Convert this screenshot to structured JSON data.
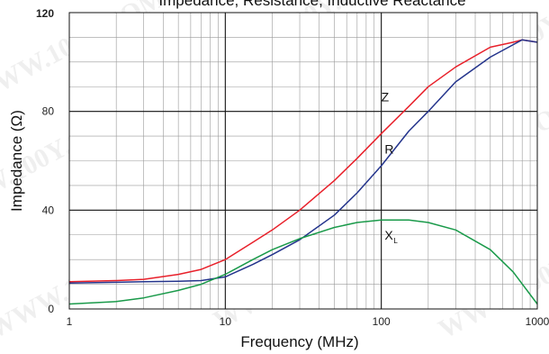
{
  "chart_data": {
    "type": "line",
    "title": "Impedance, Resistance, Inductive Reactance",
    "xlabel": "Frequency (MHz)",
    "ylabel": "Impedance (Ω)",
    "xscale": "log",
    "xlim": [
      1,
      1000
    ],
    "ylim": [
      0,
      120
    ],
    "x_ticks": [
      "1",
      "10",
      "100",
      "1000"
    ],
    "y_ticks": [
      "0",
      "40",
      "80",
      "120"
    ],
    "grid": true,
    "watermark": "WWW.100Y.COM.TW",
    "series": [
      {
        "name": "Z",
        "color": "#e8202a",
        "label_at": [
          100,
          84
        ],
        "points": [
          [
            1,
            11
          ],
          [
            2,
            11.5
          ],
          [
            3,
            12
          ],
          [
            5,
            14
          ],
          [
            7,
            16
          ],
          [
            10,
            20
          ],
          [
            15,
            27
          ],
          [
            20,
            32
          ],
          [
            30,
            40
          ],
          [
            50,
            52
          ],
          [
            70,
            61
          ],
          [
            100,
            71
          ],
          [
            150,
            82
          ],
          [
            200,
            90
          ],
          [
            300,
            98
          ],
          [
            500,
            106
          ],
          [
            700,
            108
          ],
          [
            800,
            109
          ],
          [
            1000,
            108
          ]
        ]
      },
      {
        "name": "R",
        "color": "#24348c",
        "label_at": [
          105,
          63
        ],
        "points": [
          [
            1,
            10.5
          ],
          [
            2,
            10.8
          ],
          [
            3,
            11
          ],
          [
            5,
            11.2
          ],
          [
            7,
            11.5
          ],
          [
            10,
            13
          ],
          [
            15,
            18
          ],
          [
            20,
            22
          ],
          [
            30,
            28
          ],
          [
            50,
            38
          ],
          [
            70,
            47
          ],
          [
            100,
            58
          ],
          [
            150,
            72
          ],
          [
            200,
            80
          ],
          [
            300,
            92
          ],
          [
            500,
            102
          ],
          [
            700,
            107
          ],
          [
            800,
            109
          ],
          [
            1000,
            108
          ]
        ]
      },
      {
        "name": "X",
        "subscript": "L",
        "color": "#1a9a4a",
        "label_at": [
          105,
          28
        ],
        "points": [
          [
            1,
            2
          ],
          [
            2,
            3
          ],
          [
            3,
            4.5
          ],
          [
            5,
            7.5
          ],
          [
            7,
            10
          ],
          [
            10,
            14
          ],
          [
            15,
            20
          ],
          [
            20,
            24
          ],
          [
            30,
            28.5
          ],
          [
            50,
            33
          ],
          [
            70,
            35
          ],
          [
            100,
            36
          ],
          [
            150,
            36
          ],
          [
            200,
            35
          ],
          [
            300,
            32
          ],
          [
            500,
            24
          ],
          [
            700,
            15
          ],
          [
            1000,
            2
          ]
        ]
      }
    ]
  }
}
